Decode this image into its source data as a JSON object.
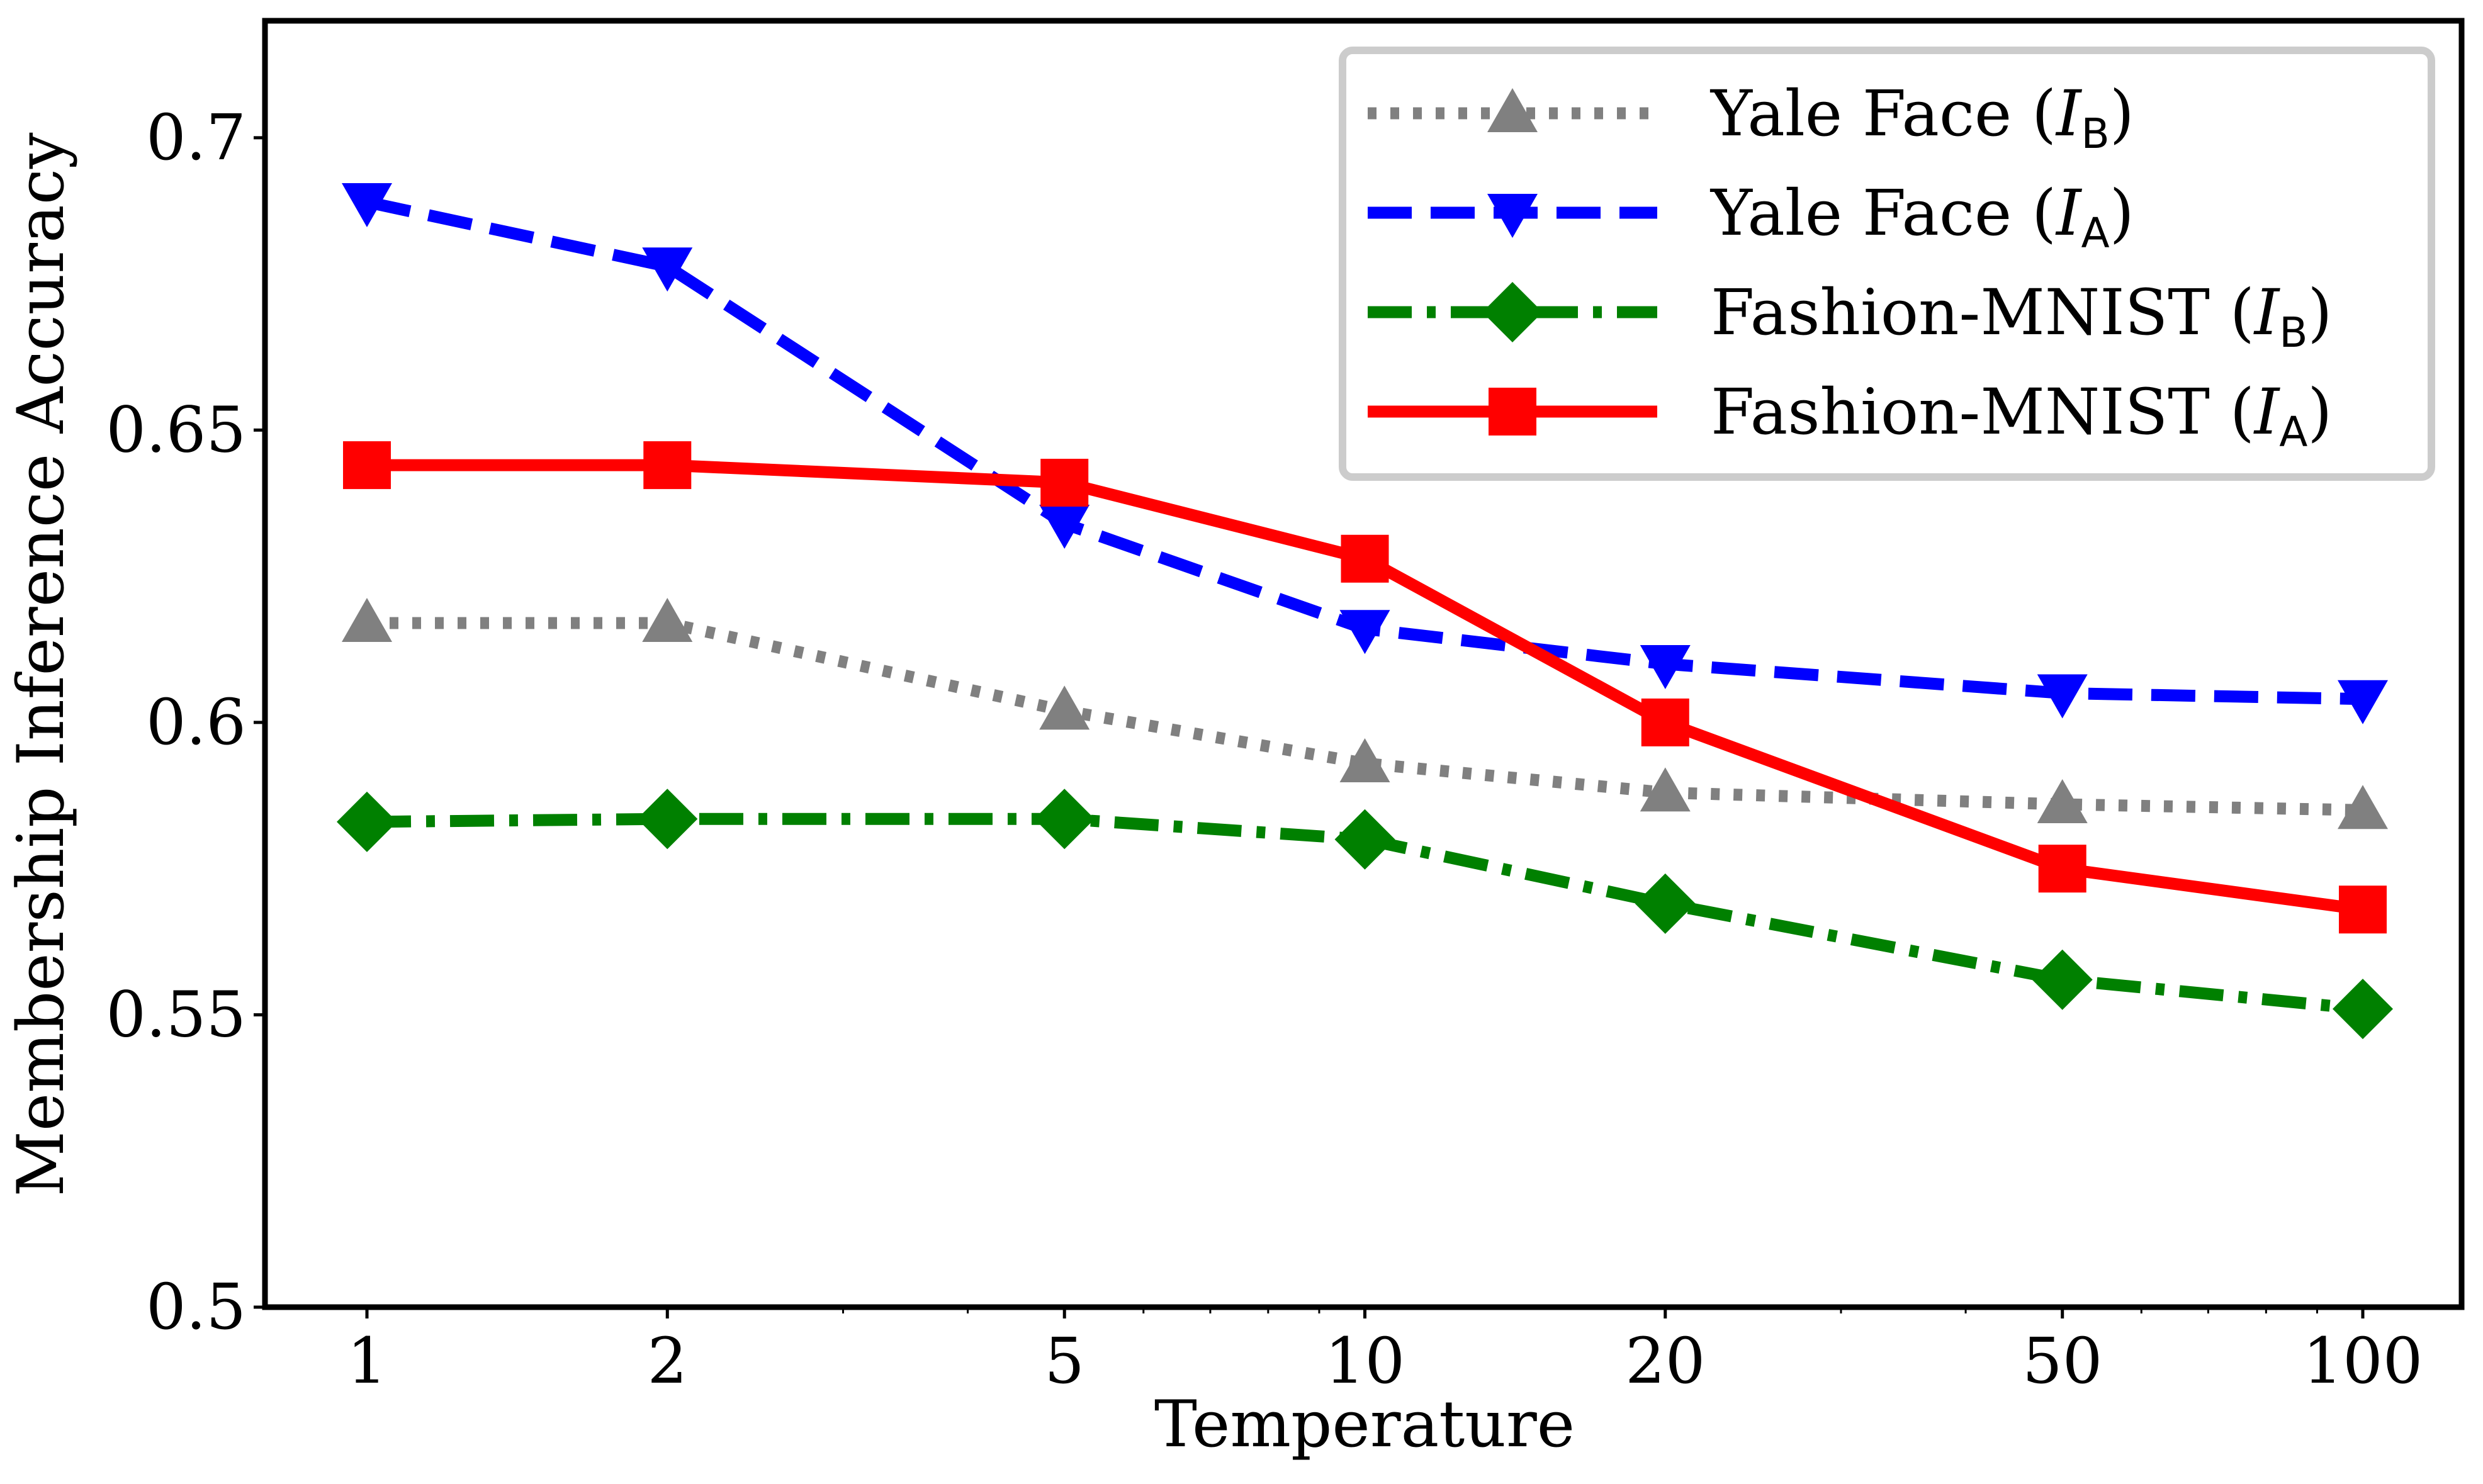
{
  "chart_data": {
    "type": "line",
    "xlabel": "Temperature",
    "ylabel": "Membership Inference Accuracy",
    "x_scale": "log",
    "x": [
      1,
      2,
      5,
      10,
      20,
      50,
      100
    ],
    "x_tick_labels": [
      "1",
      "2",
      "5",
      "10",
      "20",
      "50",
      "100"
    ],
    "ylim": [
      0.5,
      0.72
    ],
    "y_ticks": [
      0.5,
      0.55,
      0.6,
      0.65,
      0.7
    ],
    "y_tick_labels": [
      "0.5",
      "0.55",
      "0.6",
      "0.65",
      "0.7"
    ],
    "grid": false,
    "legend_position": "top-right",
    "series": [
      {
        "name": "Yale Face (IB)",
        "legend_main": "Yale Face (",
        "legend_sym": "I",
        "legend_sub": "B",
        "legend_close": ")",
        "color": "#808080",
        "line_style": "dotted",
        "marker": "triangle-up",
        "values": [
          0.617,
          0.617,
          0.602,
          0.593,
          0.588,
          0.586,
          0.585
        ]
      },
      {
        "name": "Yale Face (IA)",
        "legend_main": "Yale Face (",
        "legend_sym": "I",
        "legend_sub": "A",
        "legend_close": ")",
        "color": "#0000ff",
        "line_style": "dashed",
        "marker": "triangle-down",
        "values": [
          0.689,
          0.678,
          0.634,
          0.616,
          0.61,
          0.605,
          0.604
        ]
      },
      {
        "name": "Fashion-MNIST (IB)",
        "legend_main": "Fashion-MNIST (",
        "legend_sym": "I",
        "legend_sub": "B",
        "legend_close": ")",
        "color": "#008000",
        "line_style": "dashdot",
        "marker": "diamond",
        "values": [
          0.583,
          0.5835,
          0.5835,
          0.58,
          0.569,
          0.556,
          0.551
        ]
      },
      {
        "name": "Fashion-MNIST (IA)",
        "legend_main": "Fashion-MNIST (",
        "legend_sym": "I",
        "legend_sub": "A",
        "legend_close": ")",
        "color": "#ff0000",
        "line_style": "solid",
        "marker": "square",
        "values": [
          0.644,
          0.644,
          0.641,
          0.628,
          0.6,
          0.575,
          0.568
        ]
      }
    ]
  }
}
